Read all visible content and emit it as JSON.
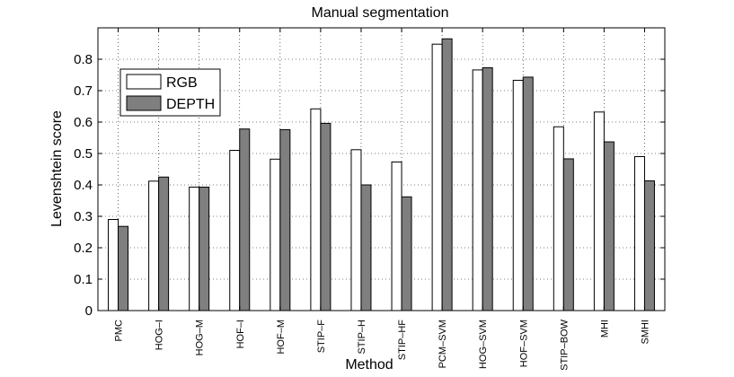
{
  "chart_data": {
    "type": "bar",
    "title": "Manual segmentation",
    "xlabel": "Method",
    "ylabel": "Levenshtein score",
    "ylim": [
      0,
      0.9
    ],
    "yticks": [
      "0",
      "0.1",
      "0.2",
      "0.3",
      "0.4",
      "0.5",
      "0.6",
      "0.7",
      "0.8"
    ],
    "grid": true,
    "legend_position": "top-left",
    "categories": [
      "PMC",
      "HOG–I",
      "HOG–M",
      "HOF–I",
      "HOF–M",
      "STIP–F",
      "STIP–H",
      "STIP–HF",
      "PCM–SVM",
      "HOG–SVM",
      "HOF–SVM",
      "STIP–BOW",
      "MHI",
      "SMHI"
    ],
    "series": [
      {
        "name": "RGB",
        "color": "#ffffff",
        "values": [
          0.29,
          0.412,
          0.393,
          0.51,
          0.482,
          0.642,
          0.512,
          0.473,
          0.848,
          0.766,
          0.733,
          0.585,
          0.632,
          0.49
        ]
      },
      {
        "name": "DEPTH",
        "color": "#7f7f7f",
        "values": [
          0.268,
          0.425,
          0.393,
          0.578,
          0.576,
          0.596,
          0.4,
          0.362,
          0.865,
          0.773,
          0.743,
          0.483,
          0.537,
          0.413
        ]
      }
    ]
  }
}
